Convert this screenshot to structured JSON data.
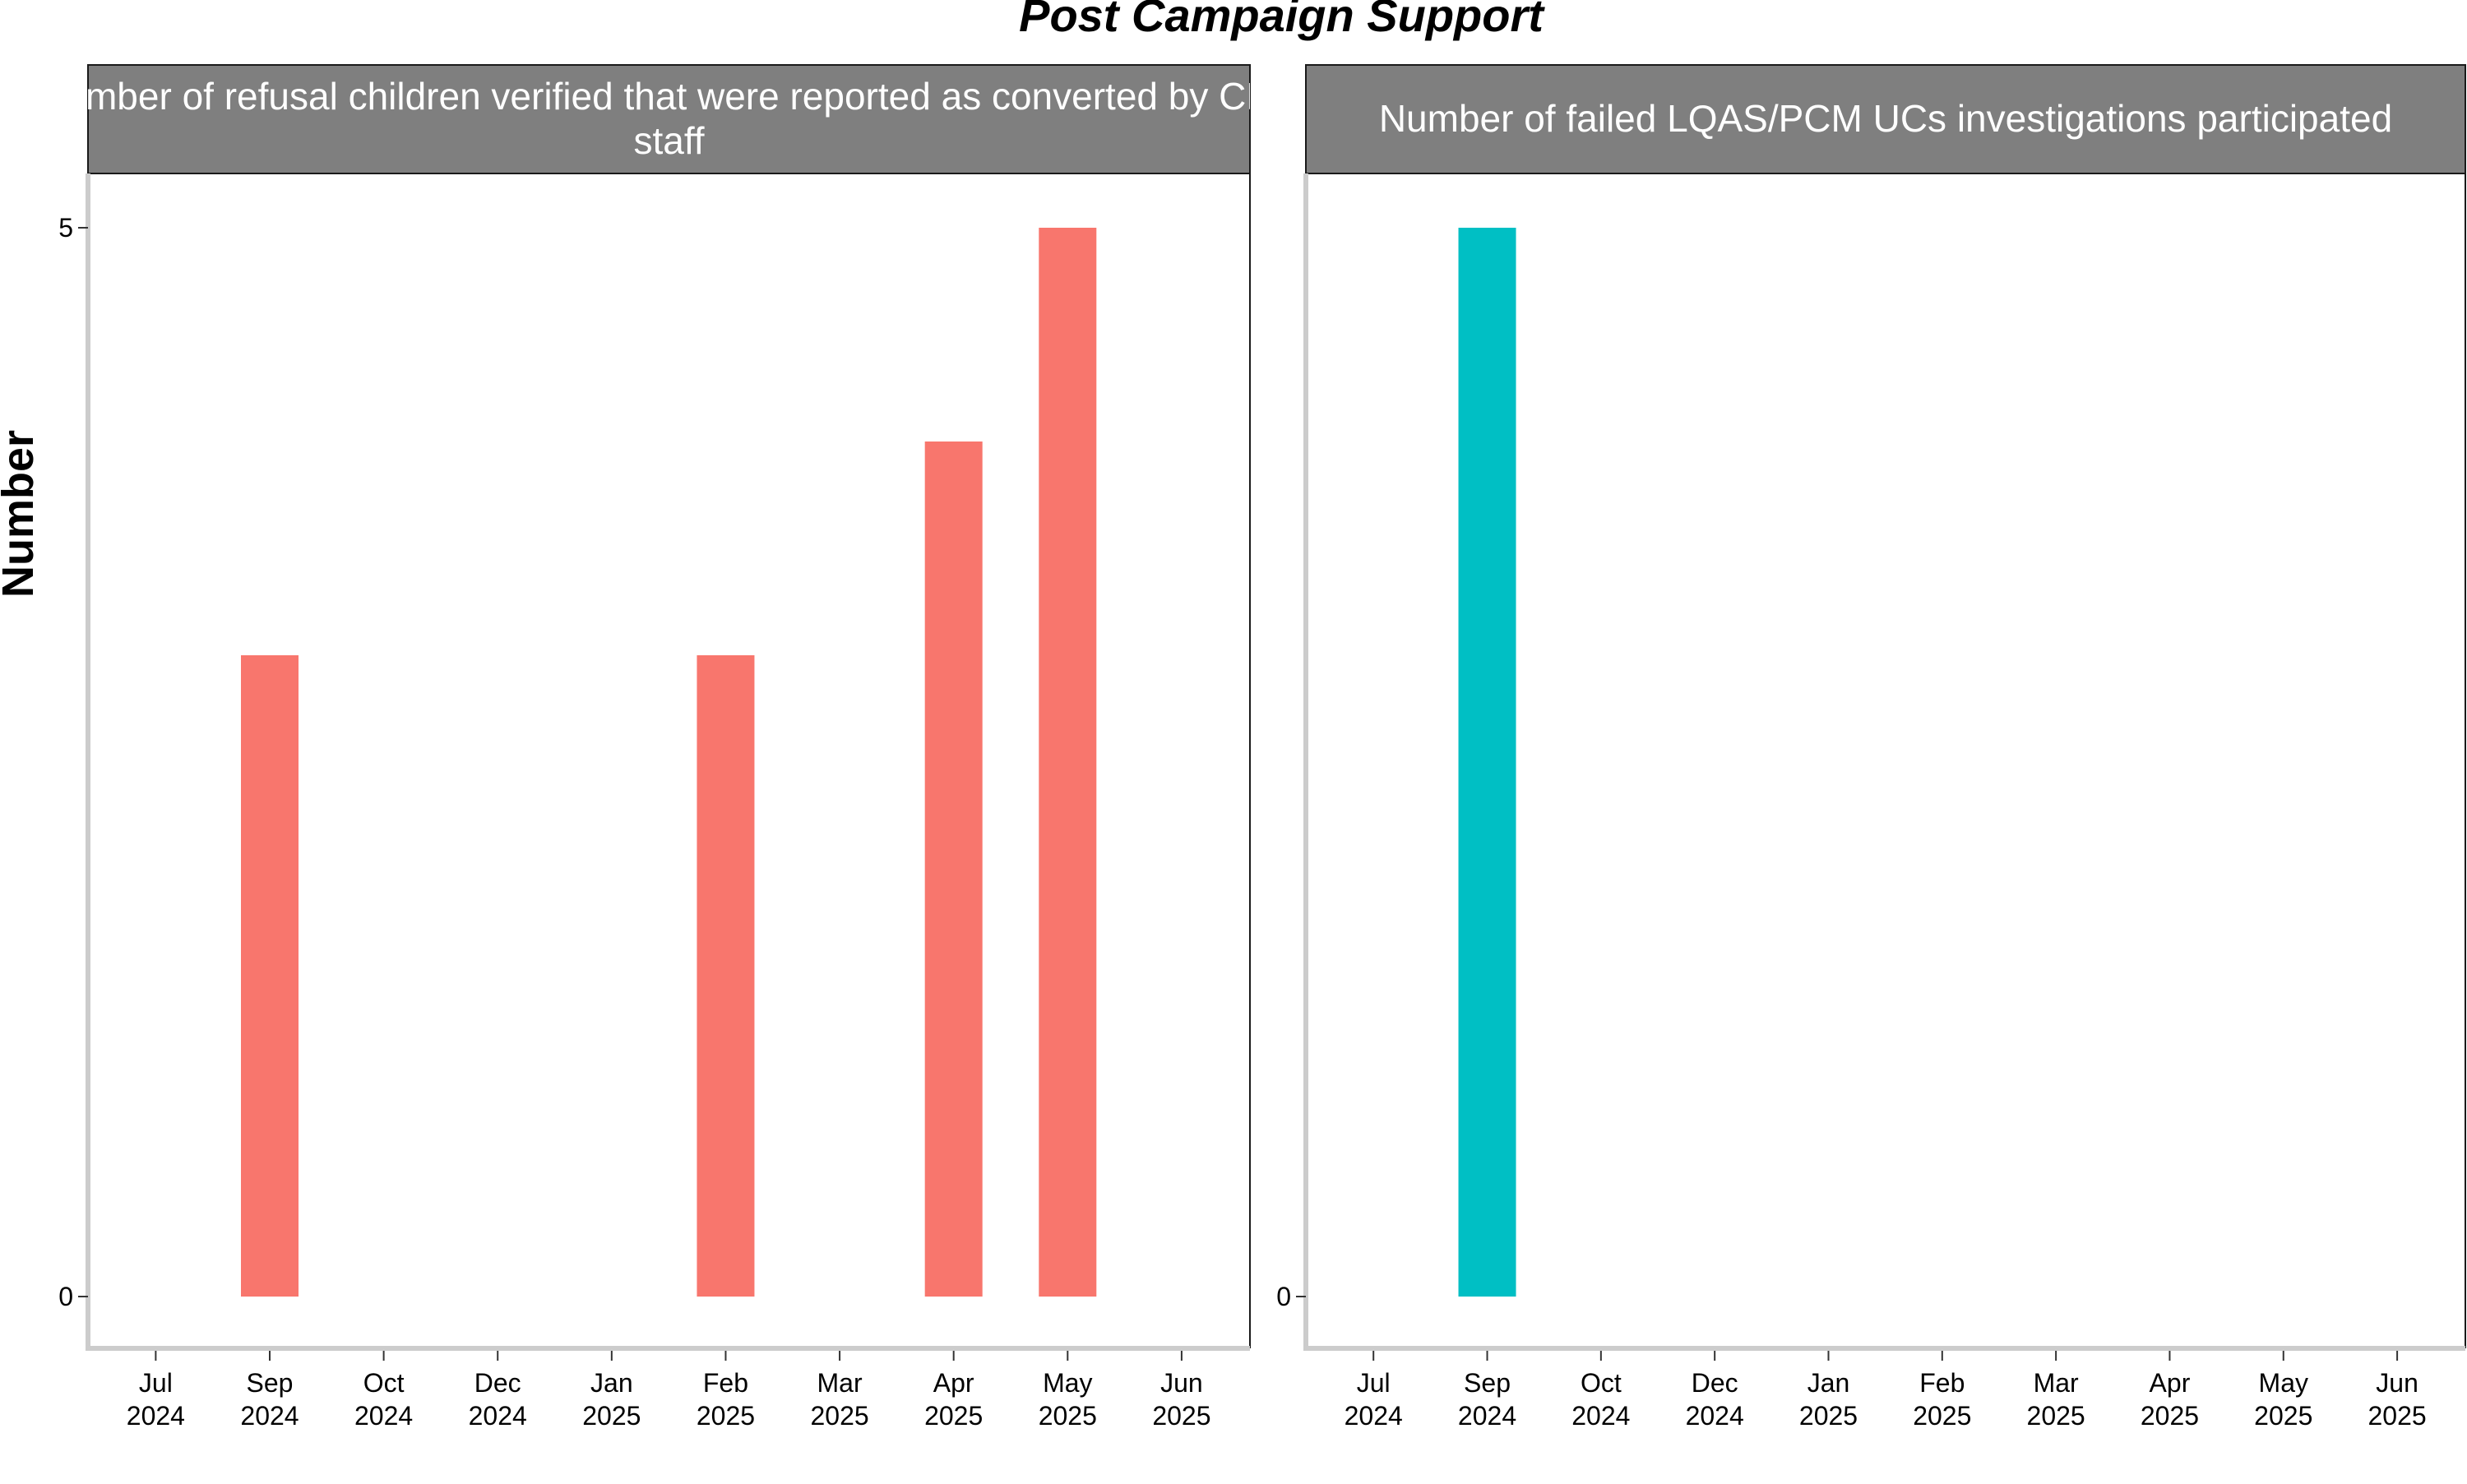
{
  "title": "Post Campaign Support",
  "ylabel": "Number",
  "chart_data": [
    {
      "type": "bar",
      "panel_title_lines": [
        "Number of refusal children verified that were reported as converted by CRC",
        "staff"
      ],
      "x_tick_labels": [
        [
          "Jul",
          "2024"
        ],
        [
          "Sep",
          "2024"
        ],
        [
          "Oct",
          "2024"
        ],
        [
          "Dec",
          "2024"
        ],
        [
          "Jan",
          "2025"
        ],
        [
          "Feb",
          "2025"
        ],
        [
          "Mar",
          "2025"
        ],
        [
          "Apr",
          "2025"
        ],
        [
          "May",
          "2025"
        ],
        [
          "Jun",
          "2025"
        ]
      ],
      "categories": [
        "Sep 2024",
        "Feb 2025",
        "Apr 2025",
        "May 2025"
      ],
      "values": [
        3,
        3,
        4,
        5
      ],
      "bar_color": "#F8766D",
      "y_ticks": [
        0,
        5
      ],
      "ylim": [
        0,
        5
      ]
    },
    {
      "type": "bar",
      "panel_title_lines": [
        "Number of failed LQAS/PCM UCs investigations participated"
      ],
      "x_tick_labels": [
        [
          "Jul",
          "2024"
        ],
        [
          "Sep",
          "2024"
        ],
        [
          "Oct",
          "2024"
        ],
        [
          "Dec",
          "2024"
        ],
        [
          "Jan",
          "2025"
        ],
        [
          "Feb",
          "2025"
        ],
        [
          "Mar",
          "2025"
        ],
        [
          "Apr",
          "2025"
        ],
        [
          "May",
          "2025"
        ],
        [
          "Jun",
          "2025"
        ]
      ],
      "categories": [
        "Sep 2024"
      ],
      "values": [
        5
      ],
      "bar_color": "#00BFC4",
      "y_ticks": [
        0,
        5
      ],
      "ylim": [
        0,
        5
      ]
    }
  ]
}
